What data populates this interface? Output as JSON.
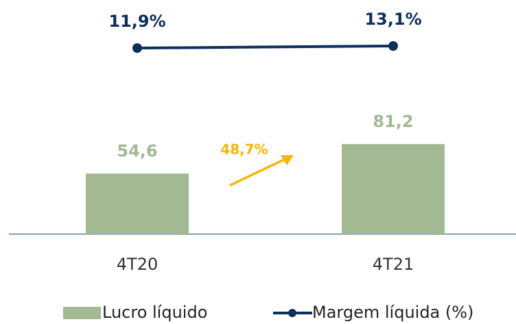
{
  "chart_data": {
    "type": "bar",
    "categories": [
      "4T20",
      "4T21"
    ],
    "series": [
      {
        "name": "Lucro líquido",
        "color": "#a3b994",
        "values": [
          54.6,
          81.2
        ],
        "value_labels": [
          "54,6",
          "81,2"
        ]
      },
      {
        "name": "Margem líquida (%)",
        "type": "line",
        "axis": "y2",
        "color": "#0d2f5a",
        "values": [
          11.9,
          13.1
        ],
        "value_labels": [
          "11,9%",
          "13,1%"
        ]
      }
    ],
    "ylim": [
      0,
      211
    ],
    "y2lim": [
      -96.5,
      39.9
    ],
    "annotations": [
      {
        "text": "48,7%",
        "color": "#f5b800"
      }
    ]
  }
}
